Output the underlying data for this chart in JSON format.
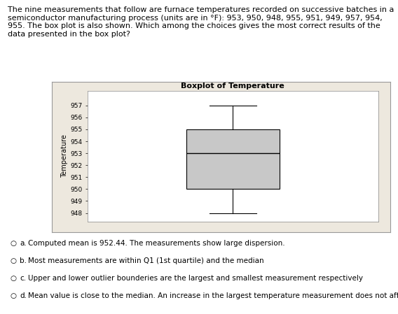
{
  "title": "Boxplot of Temperature",
  "ylabel": "Temperature",
  "data": [
    953,
    950,
    948,
    955,
    951,
    949,
    957,
    954,
    955
  ],
  "ylim": [
    947.3,
    958.2
  ],
  "yticks": [
    948,
    949,
    950,
    951,
    952,
    953,
    954,
    955,
    956,
    957
  ],
  "box_color": "#c8c8c8",
  "whisker_color": "#000000",
  "median_color": "#000000",
  "outer_bg": "#ede8de",
  "inner_bg": "#ffffff",
  "fig_bg": "#ffffff",
  "text_color": "#000000",
  "header_text": "The nine measurements that follow are furnace temperatures recorded on successive batches in a semiconductor manufacturing process (units are in °F): 953, 950, 948, 955, 951, 949, 957, 954, 955. The box plot is also shown. Which among the choices gives the most correct results of the data presented in the box plot?",
  "choice_a": "Computed mean is 952.44. The measurements show large dispersion.",
  "choice_b": "Most measurements are within Q1 (1st quartile) and the median",
  "choice_c": "Upper and lower outlier bounderies are the largest and smallest measurement respectively",
  "choice_d": "Mean value is close to the median. An increase in the largest temperature measurement does not affect the median",
  "title_fontsize": 8,
  "label_fontsize": 7,
  "tick_fontsize": 6.5,
  "header_fontsize": 8,
  "choice_fontsize": 7.5
}
